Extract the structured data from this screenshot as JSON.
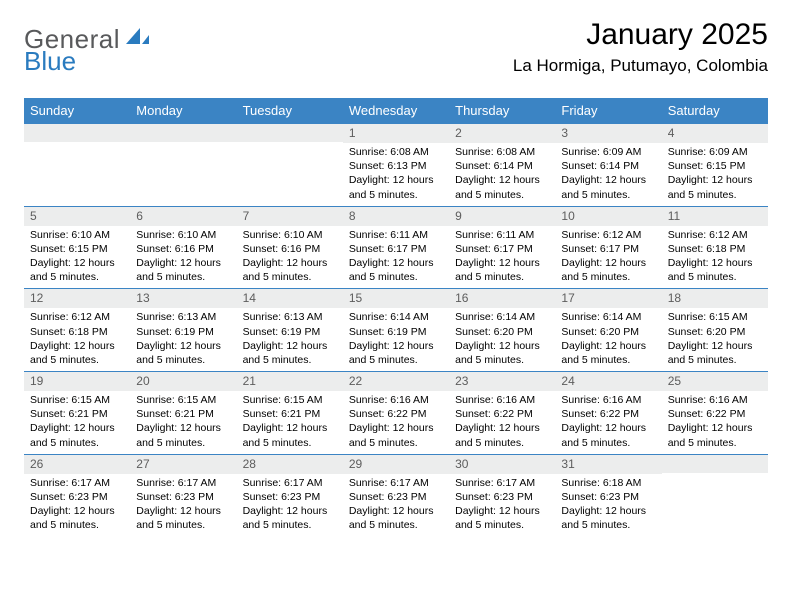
{
  "logo": {
    "word1": "General",
    "word2": "Blue"
  },
  "title": "January 2025",
  "location": "La Hormiga, Putumayo, Colombia",
  "colors": {
    "header_bg": "#3b84c4",
    "header_text": "#ffffff",
    "daynum_bg": "#eceded",
    "daynum_border": "#3b84c4",
    "daynum_text": "#5d5d5d",
    "logo_gray": "#58595b",
    "logo_blue": "#2a7bbf"
  },
  "weekdays": [
    "Sunday",
    "Monday",
    "Tuesday",
    "Wednesday",
    "Thursday",
    "Friday",
    "Saturday"
  ],
  "weeks": [
    [
      null,
      null,
      null,
      {
        "n": "1",
        "sr": "6:08 AM",
        "ss": "6:13 PM",
        "dl": "12 hours and 5 minutes."
      },
      {
        "n": "2",
        "sr": "6:08 AM",
        "ss": "6:14 PM",
        "dl": "12 hours and 5 minutes."
      },
      {
        "n": "3",
        "sr": "6:09 AM",
        "ss": "6:14 PM",
        "dl": "12 hours and 5 minutes."
      },
      {
        "n": "4",
        "sr": "6:09 AM",
        "ss": "6:15 PM",
        "dl": "12 hours and 5 minutes."
      }
    ],
    [
      {
        "n": "5",
        "sr": "6:10 AM",
        "ss": "6:15 PM",
        "dl": "12 hours and 5 minutes."
      },
      {
        "n": "6",
        "sr": "6:10 AM",
        "ss": "6:16 PM",
        "dl": "12 hours and 5 minutes."
      },
      {
        "n": "7",
        "sr": "6:10 AM",
        "ss": "6:16 PM",
        "dl": "12 hours and 5 minutes."
      },
      {
        "n": "8",
        "sr": "6:11 AM",
        "ss": "6:17 PM",
        "dl": "12 hours and 5 minutes."
      },
      {
        "n": "9",
        "sr": "6:11 AM",
        "ss": "6:17 PM",
        "dl": "12 hours and 5 minutes."
      },
      {
        "n": "10",
        "sr": "6:12 AM",
        "ss": "6:17 PM",
        "dl": "12 hours and 5 minutes."
      },
      {
        "n": "11",
        "sr": "6:12 AM",
        "ss": "6:18 PM",
        "dl": "12 hours and 5 minutes."
      }
    ],
    [
      {
        "n": "12",
        "sr": "6:12 AM",
        "ss": "6:18 PM",
        "dl": "12 hours and 5 minutes."
      },
      {
        "n": "13",
        "sr": "6:13 AM",
        "ss": "6:19 PM",
        "dl": "12 hours and 5 minutes."
      },
      {
        "n": "14",
        "sr": "6:13 AM",
        "ss": "6:19 PM",
        "dl": "12 hours and 5 minutes."
      },
      {
        "n": "15",
        "sr": "6:14 AM",
        "ss": "6:19 PM",
        "dl": "12 hours and 5 minutes."
      },
      {
        "n": "16",
        "sr": "6:14 AM",
        "ss": "6:20 PM",
        "dl": "12 hours and 5 minutes."
      },
      {
        "n": "17",
        "sr": "6:14 AM",
        "ss": "6:20 PM",
        "dl": "12 hours and 5 minutes."
      },
      {
        "n": "18",
        "sr": "6:15 AM",
        "ss": "6:20 PM",
        "dl": "12 hours and 5 minutes."
      }
    ],
    [
      {
        "n": "19",
        "sr": "6:15 AM",
        "ss": "6:21 PM",
        "dl": "12 hours and 5 minutes."
      },
      {
        "n": "20",
        "sr": "6:15 AM",
        "ss": "6:21 PM",
        "dl": "12 hours and 5 minutes."
      },
      {
        "n": "21",
        "sr": "6:15 AM",
        "ss": "6:21 PM",
        "dl": "12 hours and 5 minutes."
      },
      {
        "n": "22",
        "sr": "6:16 AM",
        "ss": "6:22 PM",
        "dl": "12 hours and 5 minutes."
      },
      {
        "n": "23",
        "sr": "6:16 AM",
        "ss": "6:22 PM",
        "dl": "12 hours and 5 minutes."
      },
      {
        "n": "24",
        "sr": "6:16 AM",
        "ss": "6:22 PM",
        "dl": "12 hours and 5 minutes."
      },
      {
        "n": "25",
        "sr": "6:16 AM",
        "ss": "6:22 PM",
        "dl": "12 hours and 5 minutes."
      }
    ],
    [
      {
        "n": "26",
        "sr": "6:17 AM",
        "ss": "6:23 PM",
        "dl": "12 hours and 5 minutes."
      },
      {
        "n": "27",
        "sr": "6:17 AM",
        "ss": "6:23 PM",
        "dl": "12 hours and 5 minutes."
      },
      {
        "n": "28",
        "sr": "6:17 AM",
        "ss": "6:23 PM",
        "dl": "12 hours and 5 minutes."
      },
      {
        "n": "29",
        "sr": "6:17 AM",
        "ss": "6:23 PM",
        "dl": "12 hours and 5 minutes."
      },
      {
        "n": "30",
        "sr": "6:17 AM",
        "ss": "6:23 PM",
        "dl": "12 hours and 5 minutes."
      },
      {
        "n": "31",
        "sr": "6:18 AM",
        "ss": "6:23 PM",
        "dl": "12 hours and 5 minutes."
      },
      null
    ]
  ],
  "labels": {
    "sunrise": "Sunrise:",
    "sunset": "Sunset:",
    "daylight": "Daylight:"
  }
}
